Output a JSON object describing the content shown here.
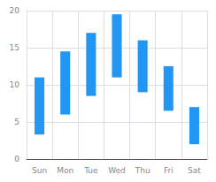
{
  "chart_data": {
    "type": "range_bar",
    "categories": [
      "Sun",
      "Mon",
      "Tue",
      "Wed",
      "Thu",
      "Fri",
      "Sat"
    ],
    "low": [
      3.3,
      6.0,
      8.5,
      11.0,
      9.0,
      6.5,
      2.0
    ],
    "high": [
      11.0,
      14.5,
      17.0,
      19.5,
      16.0,
      12.5,
      7.0
    ],
    "color": "#2196F3",
    "ylim": [
      0,
      20
    ],
    "yticks": [
      0,
      5,
      10,
      15,
      20
    ],
    "grid": true
  }
}
